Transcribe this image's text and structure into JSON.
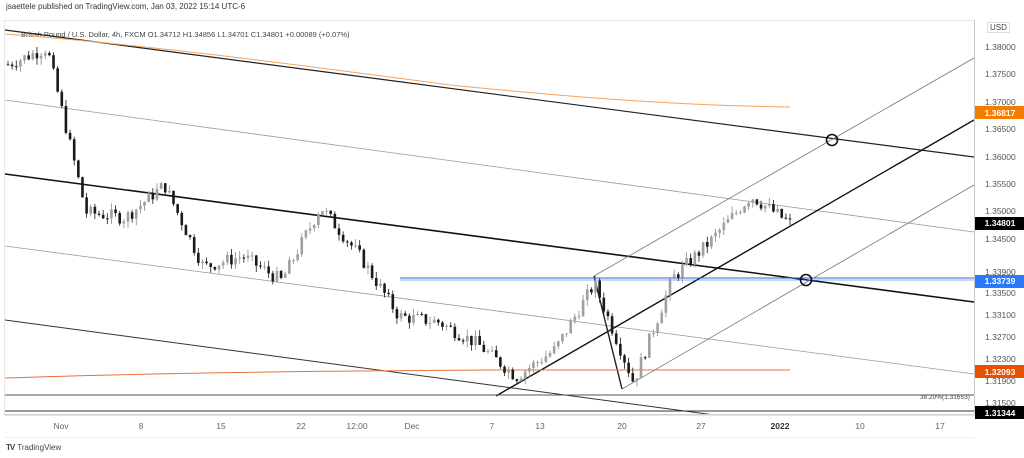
{
  "header": {
    "published": "jsaettele published on TradingView.com, Jan 03, 2022 15:14 UTC-6"
  },
  "symbol": {
    "line": "British Pound / U.S. Dollar, 4h, FXCM  O1.34712  H1.34856  L1.34701  C1.34801  +0.00089 (+0.07%)"
  },
  "footer": {
    "logo": "TV",
    "brand": "TradingView"
  },
  "colors": {
    "sma_orange": "#f7a35c",
    "sma_red": "#e8753a",
    "blue_level": "#2962ff",
    "current": "#000000",
    "label_orange": "#f57c00",
    "label_red": "#e65100",
    "label_blue": "#2979ff"
  },
  "chart_data": {
    "type": "candlestick",
    "title": "British Pound / U.S. Dollar, 4h, FXCM",
    "currency": "USD",
    "xlabel": "",
    "ylabel": "",
    "ylim": [
      1.3115,
      1.3855
    ],
    "x_ticks": [
      "Nov",
      "8",
      "15",
      "22",
      "12:00",
      "Dec",
      "7",
      "13",
      "20",
      "27",
      "2022",
      "10",
      "17"
    ],
    "y_ticks": [
      "1.38000",
      "1.37500",
      "1.37000",
      "1.36500",
      "1.36000",
      "1.35500",
      "1.35000",
      "1.34500",
      "1.33900",
      "1.33500",
      "1.33100",
      "1.32700",
      "1.32300",
      "1.31900",
      "1.31500"
    ],
    "ohlc_last": {
      "open": 1.34712,
      "high": 1.34856,
      "low": 1.34701,
      "close": 1.34801,
      "change": "+0.00089",
      "change_pct": "+0.07%"
    },
    "price_labels": [
      {
        "value": "1.36817",
        "kind": "sma-orange"
      },
      {
        "value": "1.34801",
        "kind": "last-price"
      },
      {
        "value": "1.33739",
        "kind": "horizontal-level-blue"
      },
      {
        "value": "1.32093",
        "kind": "sma-red"
      },
      {
        "value": "1.31344",
        "kind": "horizontal-line"
      }
    ],
    "annotations": [
      {
        "text": "38.20%(1.31653)",
        "kind": "fibonacci-level"
      },
      {
        "kind": "circle",
        "near_price": 1.362,
        "label": "upper channel / upper trendline intersection"
      },
      {
        "kind": "circle",
        "near_price": 1.3374,
        "label": "blue level / middle trendline intersection"
      }
    ],
    "approx_path": [
      {
        "date": "Oct 29",
        "close": 1.377
      },
      {
        "date": "Nov 1",
        "close": 1.38
      },
      {
        "date": "Nov 4",
        "close": 1.35
      },
      {
        "date": "Nov 5",
        "close": 1.349
      },
      {
        "date": "Nov 8",
        "close": 1.355
      },
      {
        "date": "Nov 10",
        "close": 1.34
      },
      {
        "date": "Nov 12",
        "close": 1.342
      },
      {
        "date": "Nov 15",
        "close": 1.3375
      },
      {
        "date": "Nov 18",
        "close": 1.351
      },
      {
        "date": "Nov 22",
        "close": 1.342
      },
      {
        "date": "Nov 26",
        "close": 1.331
      },
      {
        "date": "Nov 30",
        "close": 1.33
      },
      {
        "date": "Dec 3",
        "close": 1.326
      },
      {
        "date": "Dec 8",
        "close": 1.32
      },
      {
        "date": "Dec 13",
        "close": 1.325
      },
      {
        "date": "Dec 16",
        "close": 1.337
      },
      {
        "date": "Dec 20",
        "close": 1.319
      },
      {
        "date": "Dec 23",
        "close": 1.338
      },
      {
        "date": "Dec 28",
        "close": 1.345
      },
      {
        "date": "Dec 31",
        "close": 1.353
      },
      {
        "date": "Jan 3",
        "close": 1.348
      }
    ]
  }
}
